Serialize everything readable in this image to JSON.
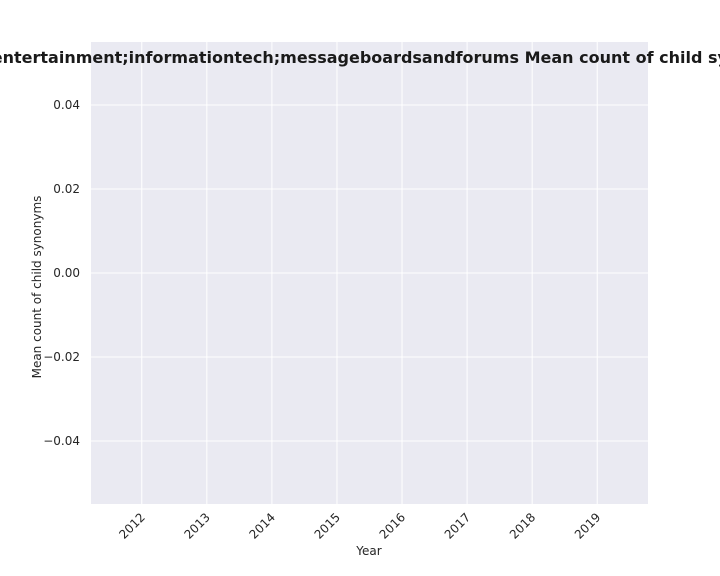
{
  "chart_data": {
    "type": "line",
    "title": "ed to entertainment;informationtech;messageboardsandforums Mean count of child synonyms",
    "xlabel": "Year",
    "ylabel": "Mean count of child synonyms",
    "x_ticks": [
      "2012",
      "2013",
      "2014",
      "2015",
      "2016",
      "2017",
      "2018",
      "2019"
    ],
    "y_ticks": [
      "0.04",
      "0.02",
      "0.00",
      "−0.02",
      "−0.04"
    ],
    "y_tick_values": [
      0.04,
      0.02,
      0.0,
      -0.02,
      -0.04
    ],
    "ylim": [
      -0.055,
      0.055
    ],
    "xlim": [
      2011.22,
      2019.78
    ],
    "series": [],
    "grid": true,
    "background_color": "#eaeaf2",
    "grid_color": "#ffffff"
  }
}
